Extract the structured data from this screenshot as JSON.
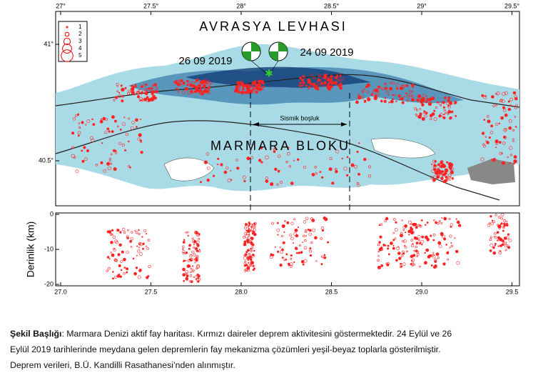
{
  "map": {
    "x_ticks": [
      {
        "value": 27,
        "label": "27°"
      },
      {
        "value": 27.5,
        "label": "27.5°"
      },
      {
        "value": 28,
        "label": "28°"
      },
      {
        "value": 28.5,
        "label": "28.5°"
      },
      {
        "value": 29,
        "label": "29°"
      },
      {
        "value": 29.5,
        "label": "29.5°"
      }
    ],
    "y_ticks": [
      {
        "value": 41,
        "label": "41°"
      },
      {
        "value": 40.5,
        "label": "40.5°"
      }
    ],
    "legend": [
      "1",
      "2",
      "3",
      "4",
      "5"
    ],
    "plate_label": "AVRASYA LEVHASI",
    "block_label": "MARMARA BLOKU",
    "event_1": "26 09 2019",
    "event_2": "24 09 2019",
    "gap_label": "Sismik boşluk"
  },
  "depth": {
    "y_label": "Derinlik (km)",
    "y_ticks": [
      0,
      -10,
      -20
    ],
    "x_ticks": [
      {
        "value": 27,
        "label": "27.0"
      },
      {
        "value": 27.5,
        "label": "27.5"
      },
      {
        "value": 28,
        "label": "28.0"
      },
      {
        "value": 28.5,
        "label": "28.5"
      },
      {
        "value": 29,
        "label": "29.0"
      },
      {
        "value": 29.5,
        "label": "29.5"
      }
    ]
  },
  "caption": {
    "title": "Şekil Başlığı",
    "lines": [
      ": Marmara Denizi aktif fay haritası. Kırmızı daireler deprem aktivitesini göstermektedir. 24 Eylül ve 26",
      "Eylül 2019 tarihlerinde meydana gelen depremlerin fay mekanizma çözümleri yeşil-beyaz toplarla gösterilmiştir.",
      "Deprem verileri, B.Ü. Kandilli Rasathanesi’nden alınmıştır."
    ]
  }
}
